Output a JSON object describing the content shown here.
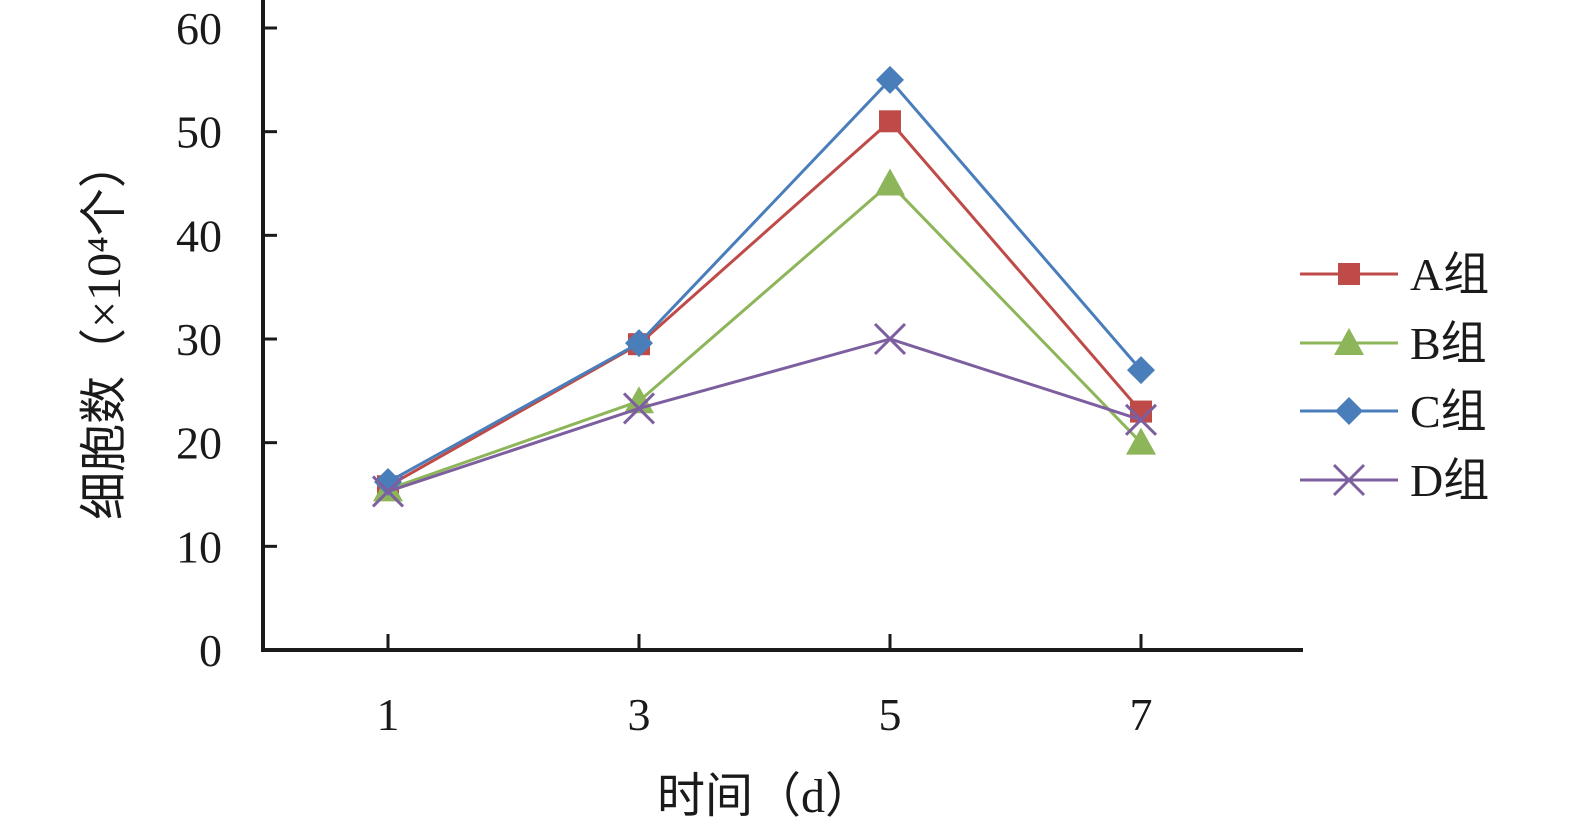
{
  "chart_data": {
    "type": "line",
    "xlabel": "时间（d）",
    "ylabel": "细胞数（×10⁴个）",
    "categories": [
      "1",
      "3",
      "5",
      "7"
    ],
    "x": [
      1,
      3,
      5,
      7
    ],
    "ylim": [
      0,
      60
    ],
    "yticks": [
      0,
      10,
      20,
      30,
      40,
      50,
      60
    ],
    "grid": false,
    "legend_position": "right",
    "series": [
      {
        "name": "A组",
        "values": [
          15.8,
          29.5,
          51,
          23
        ],
        "color": "#be4b48",
        "marker": "square"
      },
      {
        "name": "B组",
        "values": [
          15.5,
          24,
          45,
          20
        ],
        "color": "#8db559",
        "marker": "triangle"
      },
      {
        "name": "C组",
        "values": [
          16.2,
          29.6,
          55,
          27
        ],
        "color": "#4a7ebb",
        "marker": "diamond"
      },
      {
        "name": "D组",
        "values": [
          15.3,
          23.3,
          30,
          22.2
        ],
        "color": "#7d5fa0",
        "marker": "x"
      }
    ]
  }
}
